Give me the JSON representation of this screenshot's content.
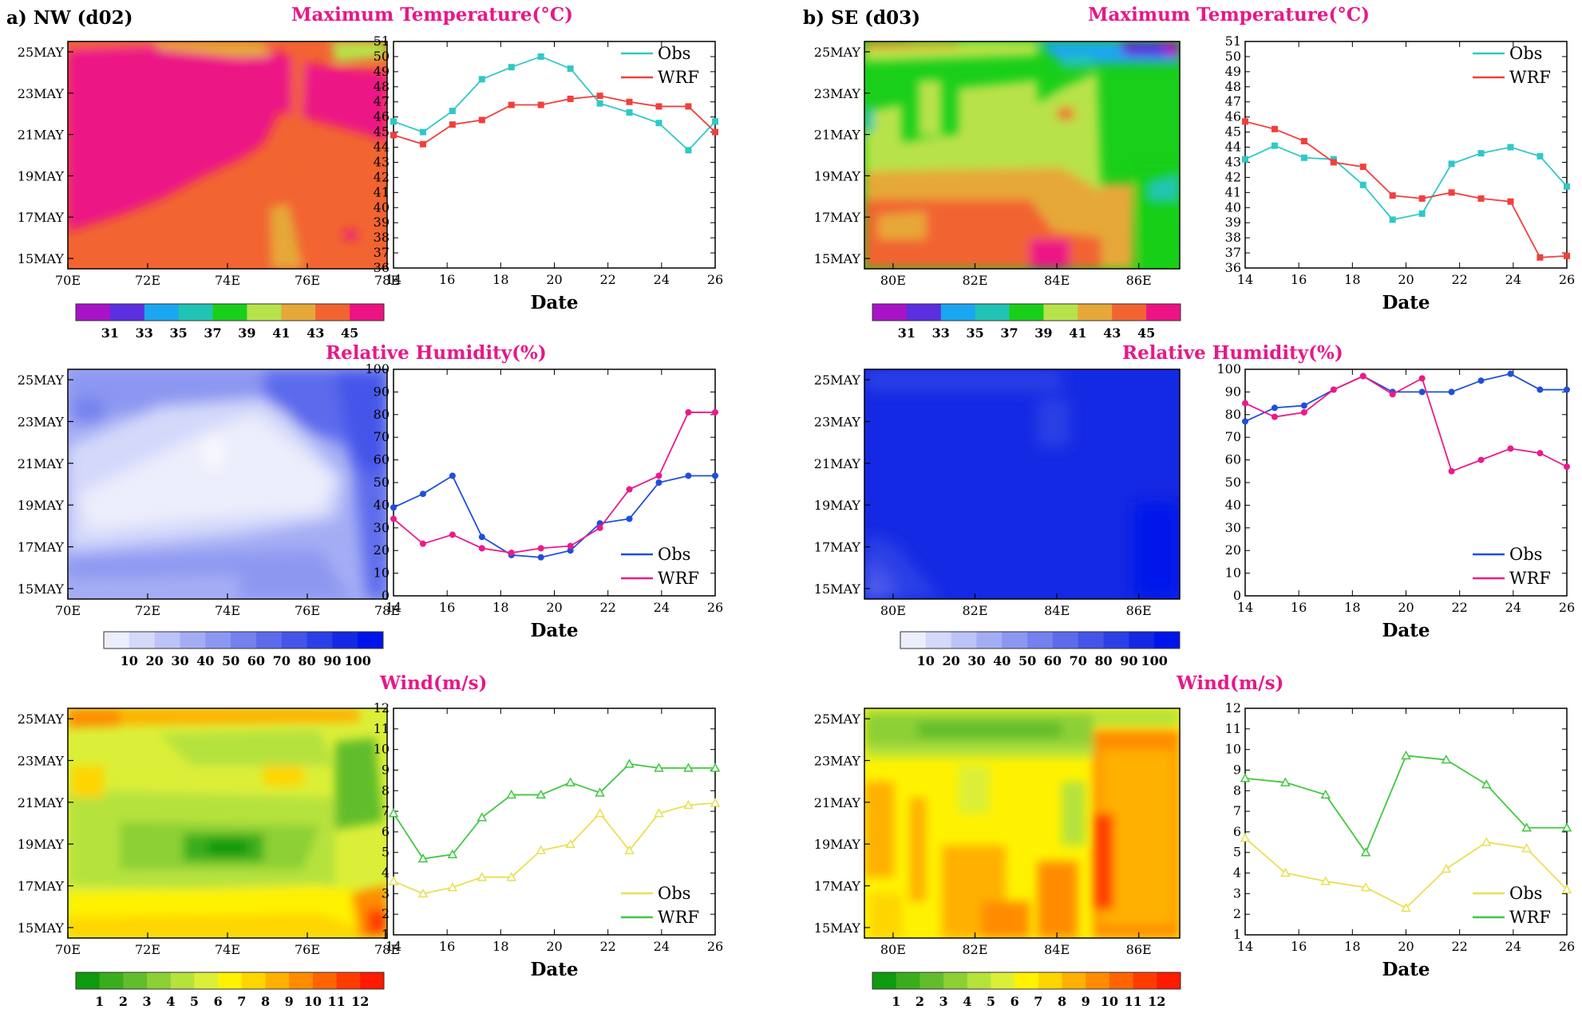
{
  "panels": {
    "nw": {
      "label": "a) NW (d02)"
    },
    "se": {
      "label": "b) SE (d03)"
    }
  },
  "rows": [
    {
      "title": "Maximum Temperature(°C)",
      "colorbar_labels": [
        "31",
        "33",
        "35",
        "37",
        "39",
        "41",
        "43",
        "45"
      ],
      "colorbar_colors": [
        "#a813c8",
        "#5b2ee0",
        "#1aa6f0",
        "#20c4b4",
        "#19cf19",
        "#b8e24a",
        "#e6a838",
        "#f26431",
        "#ec1385"
      ]
    },
    {
      "title": "Relative Humidity(%)",
      "colorbar_labels": [
        "10",
        "20",
        "30",
        "40",
        "50",
        "60",
        "70",
        "80",
        "90",
        "100"
      ],
      "colorbar_colors": [
        "#eceefc",
        "#d4d9fa",
        "#bcc3f7",
        "#a4adf4",
        "#8c97f1",
        "#7481ee",
        "#5c6bec",
        "#4455e9",
        "#2c3fe6",
        "#1429e3",
        "#0014ea"
      ]
    },
    {
      "title": "Wind(m/s)",
      "colorbar_labels": [
        "1",
        "2",
        "3",
        "4",
        "5",
        "6",
        "7",
        "8",
        "9",
        "10",
        "11",
        "12"
      ],
      "colorbar_colors": [
        "#0f9a0f",
        "#3aad1d",
        "#62bd2c",
        "#8cd034",
        "#b6e23c",
        "#dcef38",
        "#fff200",
        "#ffd500",
        "#ffb000",
        "#ff8c00",
        "#ff6400",
        "#ff3c00",
        "#ff1a00"
      ]
    }
  ],
  "map_axes": {
    "date_labels": [
      "15MAY",
      "17MAY",
      "19MAY",
      "21MAY",
      "23MAY",
      "25MAY"
    ],
    "nw_lon_labels": [
      "70E",
      "72E",
      "74E",
      "76E",
      "78E"
    ],
    "se_lon_labels": [
      "80E",
      "82E",
      "84E",
      "86E"
    ]
  },
  "legend": {
    "obs": "Obs",
    "wrf": "WRF"
  },
  "xlabel": "Date",
  "chart_data": [
    {
      "type": "line",
      "panel": "a) NW (d02)",
      "variable": "Maximum Temperature(°C)",
      "xlabel": "Date",
      "xlim": [
        14,
        26
      ],
      "ylim": [
        36,
        51
      ],
      "xticks": [
        14,
        16,
        18,
        20,
        22,
        24,
        26
      ],
      "yticks": [
        36,
        37,
        38,
        39,
        40,
        41,
        42,
        43,
        44,
        45,
        46,
        47,
        48,
        49,
        50,
        51
      ],
      "x": [
        14,
        15.1,
        16.2,
        17.3,
        18.4,
        19.5,
        20.6,
        21.7,
        22.8,
        23.9,
        25,
        26
      ],
      "series": [
        {
          "name": "Obs",
          "color": "#30c8c8",
          "marker": "square",
          "values": [
            45.7,
            45,
            46.4,
            48.5,
            49.3,
            50.0,
            49.2,
            46.9,
            46.3,
            45.6,
            43.8,
            45.7
          ]
        },
        {
          "name": "WRF",
          "color": "#f0403c",
          "marker": "square",
          "values": [
            44.8,
            44.2,
            45.5,
            45.8,
            46.8,
            46.8,
            47.2,
            47.4,
            47.0,
            46.7,
            46.7,
            45.0
          ]
        }
      ]
    },
    {
      "type": "line",
      "panel": "b) SE (d03)",
      "variable": "Maximum Temperature(°C)",
      "xlabel": "Date",
      "xlim": [
        14,
        26
      ],
      "ylim": [
        36,
        51
      ],
      "xticks": [
        14,
        16,
        18,
        20,
        22,
        24,
        26
      ],
      "yticks": [
        36,
        37,
        38,
        39,
        40,
        41,
        42,
        43,
        44,
        45,
        46,
        47,
        48,
        49,
        50,
        51
      ],
      "x": [
        14,
        15.1,
        16.2,
        17.3,
        18.4,
        19.5,
        20.6,
        21.7,
        22.8,
        23.9,
        25,
        26
      ],
      "series": [
        {
          "name": "Obs",
          "color": "#30c8c8",
          "marker": "square",
          "values": [
            43.2,
            44.1,
            43.3,
            43.2,
            41.5,
            39.2,
            39.6,
            42.9,
            43.6,
            44.0,
            43.4,
            41.4
          ]
        },
        {
          "name": "WRF",
          "color": "#f0403c",
          "marker": "square",
          "values": [
            45.7,
            45.2,
            44.4,
            43.0,
            42.7,
            40.8,
            40.6,
            41.0,
            40.6,
            40.4,
            36.7,
            36.8
          ]
        }
      ]
    },
    {
      "type": "line",
      "panel": "a) NW (d02)",
      "variable": "Relative Humidity(%)",
      "xlabel": "Date",
      "xlim": [
        14,
        26
      ],
      "ylim": [
        0,
        100
      ],
      "xticks": [
        14,
        16,
        18,
        20,
        22,
        24,
        26
      ],
      "yticks": [
        0,
        10,
        20,
        30,
        40,
        50,
        60,
        70,
        80,
        90,
        100
      ],
      "x": [
        14,
        15.1,
        16.2,
        17.3,
        18.4,
        19.5,
        20.6,
        21.7,
        22.8,
        23.9,
        25,
        26
      ],
      "series": [
        {
          "name": "Obs",
          "color": "#1e4fdc",
          "marker": "circle",
          "values": [
            39,
            45,
            53,
            26,
            18,
            17,
            20,
            32,
            34,
            50,
            53,
            53
          ]
        },
        {
          "name": "WRF",
          "color": "#ec1a8a",
          "marker": "circle",
          "values": [
            34,
            23,
            27,
            21,
            19,
            21,
            22,
            30,
            47,
            53,
            81,
            81
          ]
        }
      ]
    },
    {
      "type": "line",
      "panel": "b) SE (d03)",
      "variable": "Relative Humidity(%)",
      "xlabel": "Date",
      "xlim": [
        14,
        26
      ],
      "ylim": [
        0,
        100
      ],
      "xticks": [
        14,
        16,
        18,
        20,
        22,
        24,
        26
      ],
      "yticks": [
        0,
        10,
        20,
        30,
        40,
        50,
        60,
        70,
        80,
        90,
        100
      ],
      "x": [
        14,
        15.1,
        16.2,
        17.3,
        18.4,
        19.5,
        20.6,
        21.7,
        22.8,
        23.9,
        25,
        26
      ],
      "series": [
        {
          "name": "Obs",
          "color": "#1e4fdc",
          "marker": "circle",
          "values": [
            77,
            83,
            84,
            91,
            97,
            90,
            90,
            90,
            95,
            98,
            91,
            91
          ]
        },
        {
          "name": "WRF",
          "color": "#ec1a8a",
          "marker": "circle",
          "values": [
            85,
            79,
            81,
            91,
            97,
            89,
            96,
            55,
            60,
            65,
            63,
            57
          ]
        }
      ]
    },
    {
      "type": "line",
      "panel": "a) NW (d02)",
      "variable": "Wind(m/s)",
      "xlabel": "Date",
      "xlim": [
        14,
        26
      ],
      "ylim": [
        1,
        12
      ],
      "xticks": [
        14,
        16,
        18,
        20,
        22,
        24,
        26
      ],
      "yticks": [
        1,
        2,
        3,
        4,
        5,
        6,
        7,
        8,
        9,
        10,
        11,
        12
      ],
      "x": [
        14,
        15.1,
        16.2,
        17.3,
        18.4,
        19.5,
        20.6,
        21.7,
        22.8,
        23.9,
        25,
        26
      ],
      "series": [
        {
          "name": "Obs",
          "color": "#e8e050",
          "marker": "triangle",
          "values": [
            3.6,
            3.0,
            3.3,
            3.8,
            3.8,
            5.1,
            5.4,
            6.9,
            5.1,
            6.9,
            7.3,
            7.4
          ]
        },
        {
          "name": "WRF",
          "color": "#40c840",
          "marker": "triangle",
          "values": [
            6.9,
            4.7,
            4.9,
            6.7,
            7.8,
            7.8,
            8.4,
            7.9,
            9.3,
            9.1,
            9.1,
            9.1
          ]
        }
      ]
    },
    {
      "type": "line",
      "panel": "b) SE (d03)",
      "variable": "Wind(m/s)",
      "xlabel": "Date",
      "xlim": [
        14,
        26
      ],
      "ylim": [
        1,
        12
      ],
      "xticks": [
        14,
        16,
        18,
        20,
        22,
        24,
        26
      ],
      "yticks": [
        1,
        2,
        3,
        4,
        5,
        6,
        7,
        8,
        9,
        10,
        11,
        12
      ],
      "x": [
        14,
        15.5,
        17,
        18.5,
        20,
        21.5,
        23,
        24.5,
        26
      ],
      "series": [
        {
          "name": "Obs",
          "color": "#e8e050",
          "marker": "triangle",
          "values": [
            5.7,
            4.0,
            3.6,
            3.3,
            2.3,
            4.2,
            5.5,
            5.2,
            3.2
          ]
        },
        {
          "name": "WRF",
          "color": "#40c840",
          "marker": "triangle",
          "values": [
            8.6,
            8.4,
            7.8,
            5.0,
            9.7,
            9.5,
            8.3,
            6.2,
            6.2
          ]
        }
      ]
    }
  ]
}
